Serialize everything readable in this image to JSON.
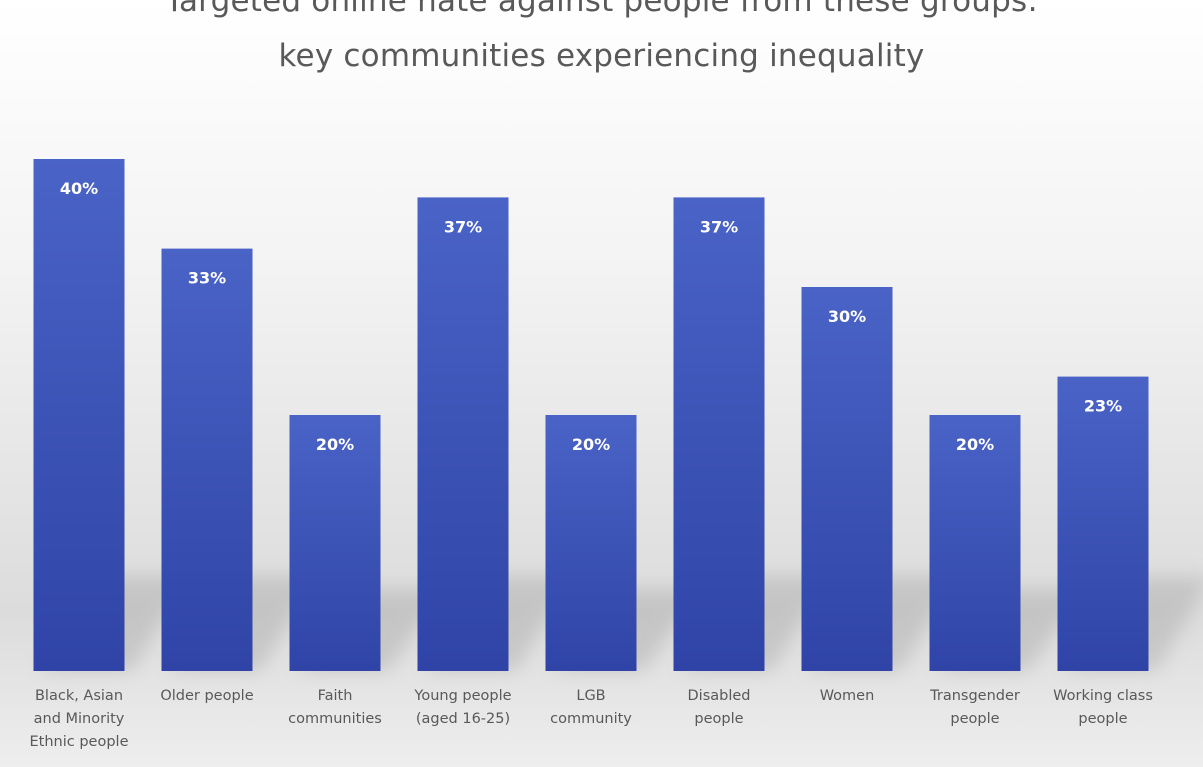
{
  "chart_data": {
    "type": "bar",
    "title_lines": [
      "Targeted online hate against people from these groups:",
      "key communities experiencing inequality"
    ],
    "categories": [
      [
        "Black, Asian",
        "and Minority",
        "Ethnic people"
      ],
      [
        "Older people"
      ],
      [
        "Faith",
        "communities"
      ],
      [
        "Young people",
        "(aged 16-25)"
      ],
      [
        "LGB",
        "community"
      ],
      [
        "Disabled",
        "people"
      ],
      [
        "Women"
      ],
      [
        "Transgender",
        "people"
      ],
      [
        "Working class",
        "people"
      ]
    ],
    "values": [
      40,
      33,
      20,
      37,
      20,
      37,
      30,
      20,
      23
    ],
    "value_labels": [
      "40%",
      "33%",
      "20%",
      "37%",
      "20%",
      "37%",
      "30%",
      "20%",
      "23%"
    ],
    "value_suffix": "%",
    "xlabel": "",
    "ylabel": "",
    "ylim": [
      0,
      40
    ],
    "grid": false,
    "legend": "none",
    "colors": {
      "bar_top": "#4a63c7",
      "bar_bottom": "#2f44a6",
      "text": "#595959",
      "label": "#ffffff"
    }
  }
}
